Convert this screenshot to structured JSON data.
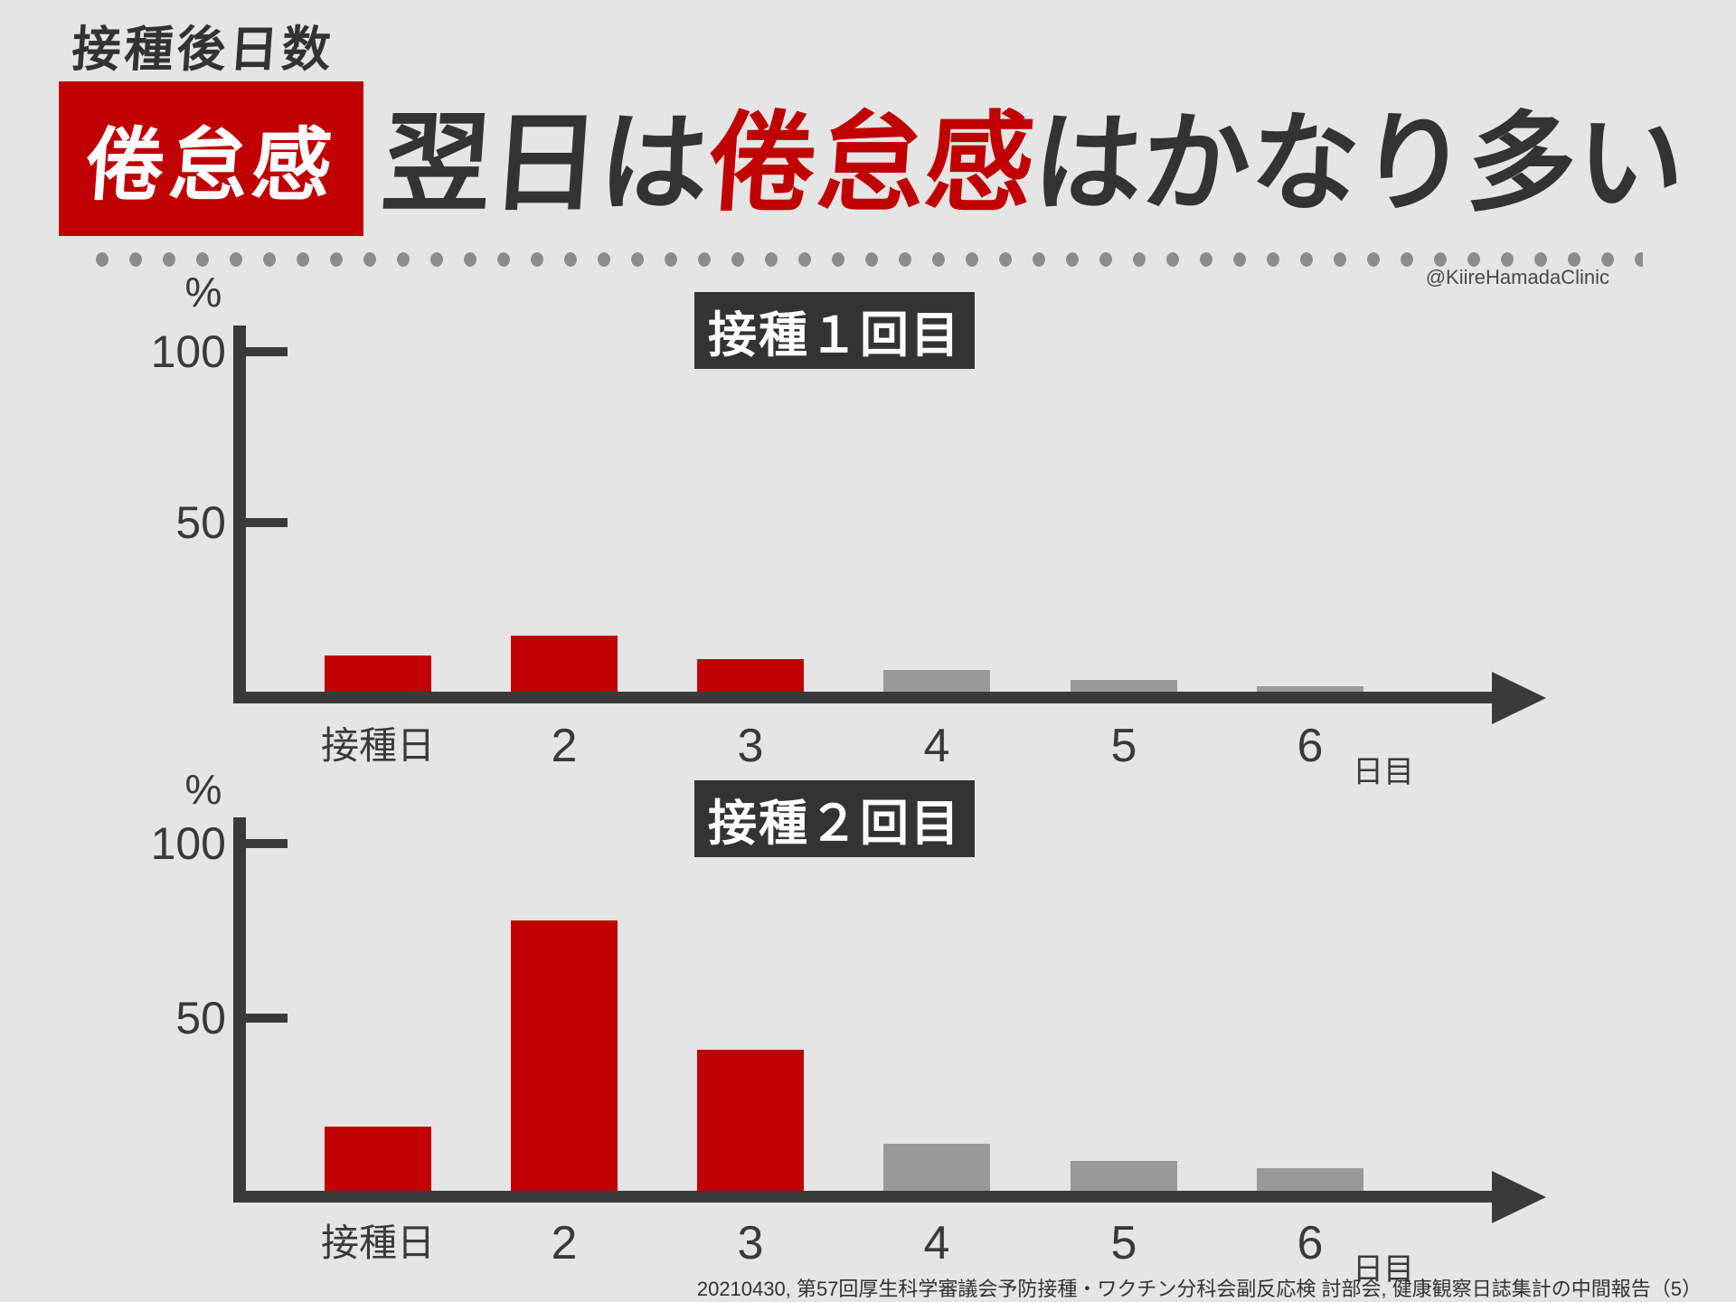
{
  "header": {
    "eyebrow": "接種後日数",
    "badge": "倦怠感",
    "title_pre": "翌日は",
    "title_highlight": "倦怠感",
    "title_post": "はかなり多い",
    "credit": "@KiireHamadaClinic"
  },
  "colors": {
    "red": "#c00000",
    "gray_bar": "#999999",
    "axis": "#3a3a3a",
    "dark_box": "#333333",
    "background": "#e5e5e5",
    "dot": "#8c8c8c"
  },
  "chart_data": [
    {
      "type": "bar",
      "title": "接種１回目",
      "ylabel": "%",
      "xlabel": "日目",
      "ylim": [
        0,
        110
      ],
      "yticks": [
        100,
        50
      ],
      "grid": false,
      "legend": "none",
      "categories": [
        "接種日",
        "2",
        "3",
        "4",
        "5",
        "6"
      ],
      "values": [
        11,
        17,
        10,
        7,
        4,
        2
      ],
      "bar_colors": [
        "red",
        "red",
        "red",
        "gray",
        "gray",
        "gray"
      ]
    },
    {
      "type": "bar",
      "title": "接種２回目",
      "ylabel": "%",
      "xlabel": "日目",
      "ylim": [
        0,
        110
      ],
      "yticks": [
        100,
        50
      ],
      "grid": false,
      "legend": "none",
      "categories": [
        "接種日",
        "2",
        "3",
        "4",
        "5",
        "6"
      ],
      "values": [
        19,
        78,
        41,
        14,
        9,
        7
      ],
      "bar_colors": [
        "red",
        "red",
        "red",
        "gray",
        "gray",
        "gray"
      ]
    }
  ],
  "footer": {
    "source": "20210430, 第57回厚生科学審議会予防接種・ワクチン分科会副反応検 討部会, 健康観察日誌集計の中間報告（5）"
  }
}
